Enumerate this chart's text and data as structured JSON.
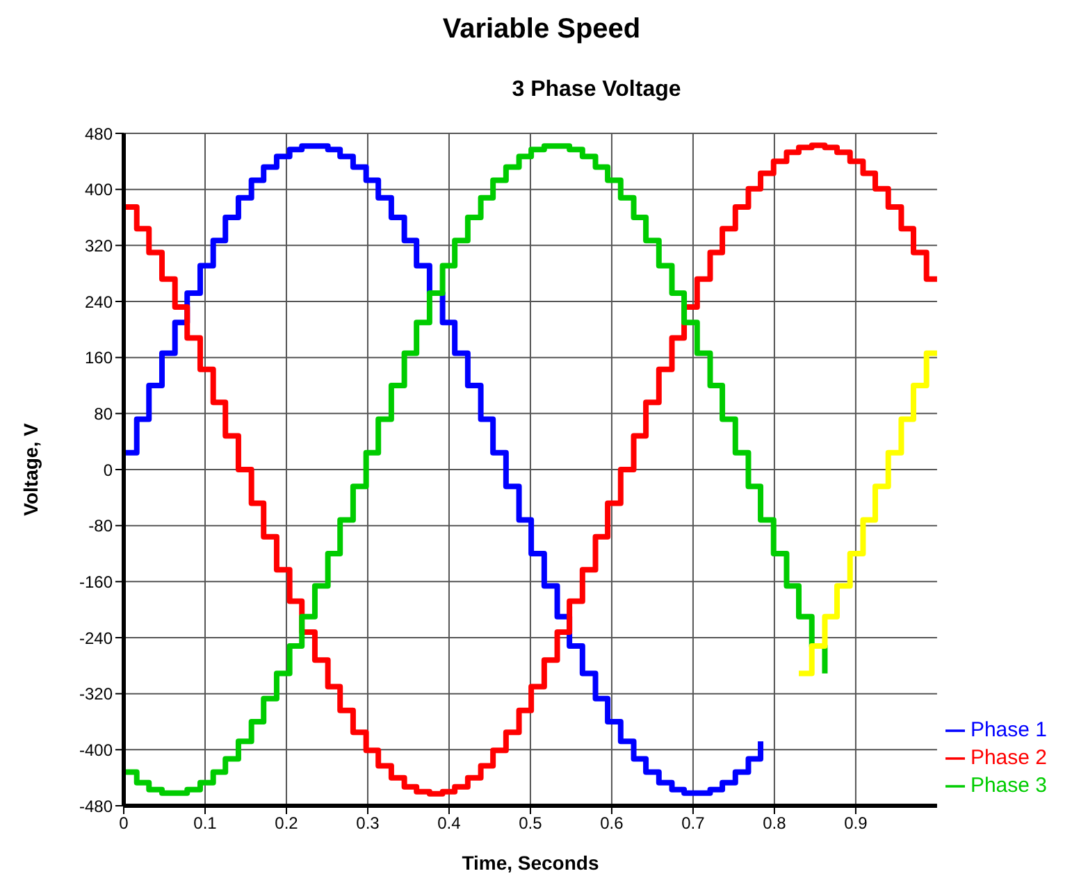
{
  "chart_data": {
    "type": "step",
    "title": "Variable Speed",
    "subtitle": "3 Phase Voltage",
    "xlabel": "Time, Seconds",
    "ylabel": "Voltage, V",
    "x": [
      0,
      0.016,
      0.031,
      0.047,
      0.063,
      0.078,
      0.094,
      0.11,
      0.125,
      0.141,
      0.157,
      0.172,
      0.188,
      0.204,
      0.219,
      0.235,
      0.251,
      0.266,
      0.282,
      0.298,
      0.313,
      0.329,
      0.345,
      0.36,
      0.376,
      0.392,
      0.407,
      0.423,
      0.439,
      0.454,
      0.47,
      0.486,
      0.501,
      0.517,
      0.533,
      0.548,
      0.564,
      0.58,
      0.595,
      0.611,
      0.627,
      0.642,
      0.658,
      0.674,
      0.689,
      0.705,
      0.721,
      0.736,
      0.752,
      0.768,
      0.783,
      0.799,
      0.815,
      0.83,
      0.846,
      0.862,
      0.877,
      0.893,
      0.909,
      0.924,
      0.94,
      0.956,
      0.971,
      0.987,
      1.0
    ],
    "series": [
      {
        "name": "Phase 1",
        "color": "#0000ff",
        "values": [
          24,
          72,
          120,
          166,
          210,
          252,
          291,
          327,
          360,
          388,
          413,
          432,
          447,
          457,
          462,
          462,
          457,
          447,
          432,
          413,
          388,
          360,
          327,
          291,
          252,
          210,
          166,
          120,
          72,
          24,
          -24,
          -72,
          -120,
          -166,
          -210,
          -252,
          -291,
          -327,
          -360,
          -388,
          -413,
          -432,
          -447,
          -457,
          -462,
          -462,
          -457,
          -447,
          -432,
          -413,
          -388,
          null,
          null,
          null,
          null,
          null,
          null,
          null,
          null,
          null,
          null,
          null,
          null,
          null,
          null
        ]
      },
      {
        "name": "Phase 2",
        "color": "#ff0000",
        "values": [
          375,
          344,
          310,
          272,
          232,
          188,
          143,
          96,
          48,
          0,
          -48,
          -96,
          -143,
          -188,
          -232,
          -272,
          -310,
          -344,
          -375,
          -401,
          -423,
          -440,
          -453,
          -460,
          -463,
          -460,
          -453,
          -440,
          -423,
          -401,
          -375,
          -344,
          -310,
          -272,
          -232,
          -188,
          -143,
          -96,
          -48,
          0,
          48,
          96,
          143,
          188,
          232,
          272,
          310,
          344,
          375,
          401,
          423,
          440,
          453,
          460,
          463,
          460,
          453,
          440,
          423,
          401,
          375,
          344,
          310,
          272,
          272
        ]
      },
      {
        "name": "Phase 3",
        "color": "#00cc00",
        "values": [
          -432,
          -447,
          -457,
          -462,
          -462,
          -457,
          -447,
          -432,
          -413,
          -388,
          -360,
          -327,
          -291,
          -252,
          -210,
          -166,
          -120,
          -72,
          -24,
          24,
          72,
          120,
          166,
          210,
          252,
          291,
          327,
          360,
          388,
          413,
          432,
          447,
          457,
          462,
          462,
          457,
          447,
          432,
          413,
          388,
          360,
          327,
          291,
          252,
          210,
          166,
          120,
          72,
          24,
          -24,
          -72,
          -120,
          -166,
          -210,
          -252,
          -291,
          null,
          null,
          null,
          null,
          null,
          null,
          null,
          null,
          null
        ]
      },
      {
        "color": "#ffff00",
        "values": [
          null,
          null,
          null,
          null,
          null,
          null,
          null,
          null,
          null,
          null,
          null,
          null,
          null,
          null,
          null,
          null,
          null,
          null,
          null,
          null,
          null,
          null,
          null,
          null,
          null,
          null,
          null,
          null,
          null,
          null,
          null,
          null,
          null,
          null,
          null,
          null,
          null,
          null,
          null,
          null,
          null,
          null,
          null,
          null,
          null,
          null,
          null,
          null,
          null,
          null,
          null,
          null,
          null,
          -291,
          -252,
          -210,
          -166,
          -120,
          -72,
          -24,
          24,
          72,
          120,
          166,
          166
        ]
      }
    ],
    "xlim": [
      0,
      1
    ],
    "xticks": [
      0,
      0.1,
      0.2,
      0.3,
      0.4,
      0.5,
      0.6,
      0.7,
      0.8,
      0.9
    ],
    "ylim": [
      -480,
      480
    ],
    "yticks": [
      -480,
      -400,
      -320,
      -240,
      -160,
      -80,
      0,
      80,
      160,
      240,
      320,
      400,
      480
    ],
    "grid": true,
    "legend": "bottom right"
  }
}
